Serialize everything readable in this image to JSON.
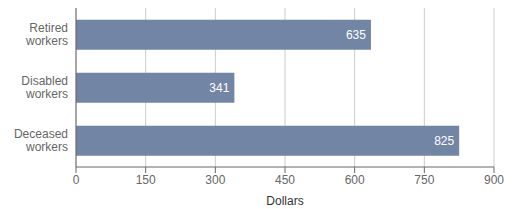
{
  "chart_data": {
    "type": "bar",
    "orientation": "horizontal",
    "categories": [
      "Retired\nworkers",
      "Disabled\nworkers",
      "Deceased\nworkers"
    ],
    "values": [
      635,
      341,
      825
    ],
    "color": "#7285a5",
    "xlabel": "Dollars",
    "xlim": [
      0,
      900
    ],
    "xticks": [
      0,
      150,
      300,
      450,
      600,
      750,
      900
    ],
    "grid": true,
    "data_labels": true
  }
}
